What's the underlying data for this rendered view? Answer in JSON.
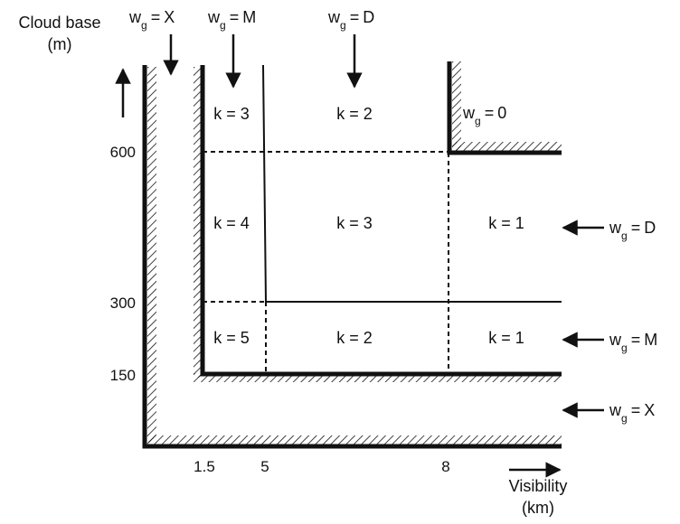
{
  "axes": {
    "y_title_line1": "Cloud base",
    "y_title_line2": "(m)",
    "x_title_line1": "Visibility",
    "x_title_line2": "(km)",
    "y_ticks": [
      "600",
      "300",
      "150"
    ],
    "x_ticks": [
      "1.5",
      "5",
      "8"
    ]
  },
  "wg": {
    "w": "w",
    "g": "g",
    "eq": "=",
    "top": [
      "X",
      "M",
      "D"
    ],
    "right": [
      "D",
      "M",
      "X"
    ],
    "corner_zero": "0"
  },
  "regions": {
    "top_row": [
      "k = 3",
      "k = 2"
    ],
    "mid_row": [
      "k = 4",
      "k = 3",
      "k = 1"
    ],
    "low_row": [
      "k = 5",
      "k = 2",
      "k = 1"
    ]
  },
  "colors": {
    "ink": "#111111"
  }
}
